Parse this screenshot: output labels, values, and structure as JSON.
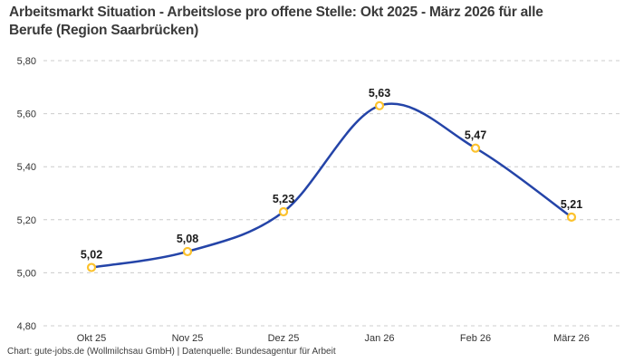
{
  "header": {
    "title": "Arbeitsmarkt Situation - Arbeitslose pro offene Stelle: Okt 2025 - März 2026 für alle Berufe (Region Saarbrücken)"
  },
  "footer": {
    "credit": "Chart: gute-jobs.de (Wollmilchsau GmbH) | Datenquelle: Bundesagentur für Arbeit"
  },
  "chart_data": {
    "type": "line",
    "title": "Arbeitsmarkt Situation - Arbeitslose pro offene Stelle: Okt 2025 - März 2026 für alle Berufe (Region Saarbrücken)",
    "categories": [
      "Okt 25",
      "Nov 25",
      "Dez 25",
      "Jan 26",
      "Feb 26",
      "März 26"
    ],
    "values": [
      5.02,
      5.08,
      5.23,
      5.63,
      5.47,
      5.21
    ],
    "value_labels": [
      "5,02",
      "5,08",
      "5,23",
      "5,63",
      "5,47",
      "5,21"
    ],
    "y_ticks": [
      5.8,
      5.6,
      5.4,
      5.2,
      5.0,
      4.8
    ],
    "y_tick_labels": [
      "5,80",
      "5,60",
      "5,40",
      "5,20",
      "5,00",
      "4,80"
    ],
    "ylim": [
      4.8,
      5.8
    ],
    "xlabel": "",
    "ylabel": "",
    "grid": "horizontal-dashed",
    "legend": "none",
    "colors": {
      "line": "#2444a8",
      "marker_ring": "#fcc22d",
      "marker_fill": "#ffffff",
      "gridline": "#cccccc",
      "tick_text": "#333333",
      "value_text": "#1a1a1a",
      "title_text": "#3a3a3a",
      "background": "#ffffff"
    }
  }
}
